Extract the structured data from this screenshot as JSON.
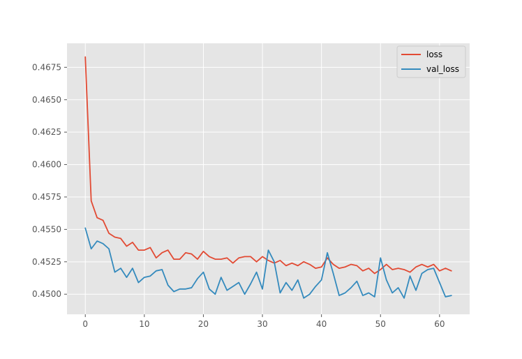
{
  "chart_data": {
    "type": "line",
    "title": "",
    "xlabel": "",
    "ylabel": "",
    "xlim": [
      -3.1,
      65.1
    ],
    "ylim": [
      0.44845,
      0.46935
    ],
    "xticks": [
      0,
      10,
      20,
      30,
      40,
      50,
      60
    ],
    "yticks": [
      0.45,
      0.4525,
      0.455,
      0.4575,
      0.46,
      0.4625,
      0.465,
      0.4675
    ],
    "ytick_labels": [
      "0.4500",
      "0.4525",
      "0.4550",
      "0.4575",
      "0.4600",
      "0.4625",
      "0.4650",
      "0.4675"
    ],
    "grid": true,
    "legend_position": "top-right",
    "series": [
      {
        "name": "loss",
        "color": "#E24A33",
        "x": [
          0,
          1,
          2,
          3,
          4,
          5,
          6,
          7,
          8,
          9,
          10,
          11,
          12,
          13,
          14,
          15,
          16,
          17,
          18,
          19,
          20,
          21,
          22,
          23,
          24,
          25,
          26,
          27,
          28,
          29,
          30,
          31,
          32,
          33,
          34,
          35,
          36,
          37,
          38,
          39,
          40,
          41,
          42,
          43,
          44,
          45,
          46,
          47,
          48,
          49,
          50,
          51,
          52,
          53,
          54,
          55,
          56,
          57,
          58,
          59,
          60,
          61,
          62
        ],
        "values": [
          0.4683,
          0.4572,
          0.4559,
          0.4557,
          0.4547,
          0.4544,
          0.4543,
          0.4537,
          0.454,
          0.4534,
          0.4534,
          0.4536,
          0.4528,
          0.4532,
          0.4534,
          0.4527,
          0.4527,
          0.4532,
          0.4531,
          0.4527,
          0.4533,
          0.4529,
          0.4527,
          0.4527,
          0.4528,
          0.4524,
          0.4528,
          0.4529,
          0.4529,
          0.4525,
          0.4529,
          0.4526,
          0.4524,
          0.4526,
          0.4522,
          0.4524,
          0.4522,
          0.4525,
          0.4523,
          0.452,
          0.4521,
          0.4528,
          0.4523,
          0.452,
          0.4521,
          0.4523,
          0.4522,
          0.4518,
          0.452,
          0.4516,
          0.4519,
          0.4523,
          0.4519,
          0.452,
          0.4519,
          0.4517,
          0.4521,
          0.4523,
          0.4521,
          0.4523,
          0.4518,
          0.452,
          0.4518
        ]
      },
      {
        "name": "val_loss",
        "color": "#348ABD",
        "x": [
          0,
          1,
          2,
          3,
          4,
          5,
          6,
          7,
          8,
          9,
          10,
          11,
          12,
          13,
          14,
          15,
          16,
          17,
          18,
          19,
          20,
          21,
          22,
          23,
          24,
          25,
          26,
          27,
          28,
          29,
          30,
          31,
          32,
          33,
          34,
          35,
          36,
          37,
          38,
          39,
          40,
          41,
          42,
          43,
          44,
          45,
          46,
          47,
          48,
          49,
          50,
          51,
          52,
          53,
          54,
          55,
          56,
          57,
          58,
          59,
          60,
          61,
          62
        ],
        "values": [
          0.4551,
          0.4535,
          0.4541,
          0.4539,
          0.4535,
          0.4517,
          0.452,
          0.4513,
          0.452,
          0.4509,
          0.4513,
          0.4514,
          0.4518,
          0.4519,
          0.4507,
          0.4502,
          0.4504,
          0.4504,
          0.4505,
          0.4512,
          0.4517,
          0.4504,
          0.45,
          0.4513,
          0.4503,
          0.4506,
          0.4509,
          0.45,
          0.4508,
          0.4517,
          0.4504,
          0.4534,
          0.4525,
          0.4501,
          0.4509,
          0.4503,
          0.4511,
          0.4497,
          0.45,
          0.4506,
          0.4511,
          0.4532,
          0.4516,
          0.4499,
          0.4501,
          0.4505,
          0.451,
          0.4499,
          0.4501,
          0.4498,
          0.4528,
          0.4511,
          0.4501,
          0.4505,
          0.4497,
          0.4514,
          0.4503,
          0.4516,
          0.4519,
          0.452,
          0.4509,
          0.4498,
          0.4499
        ]
      }
    ]
  }
}
